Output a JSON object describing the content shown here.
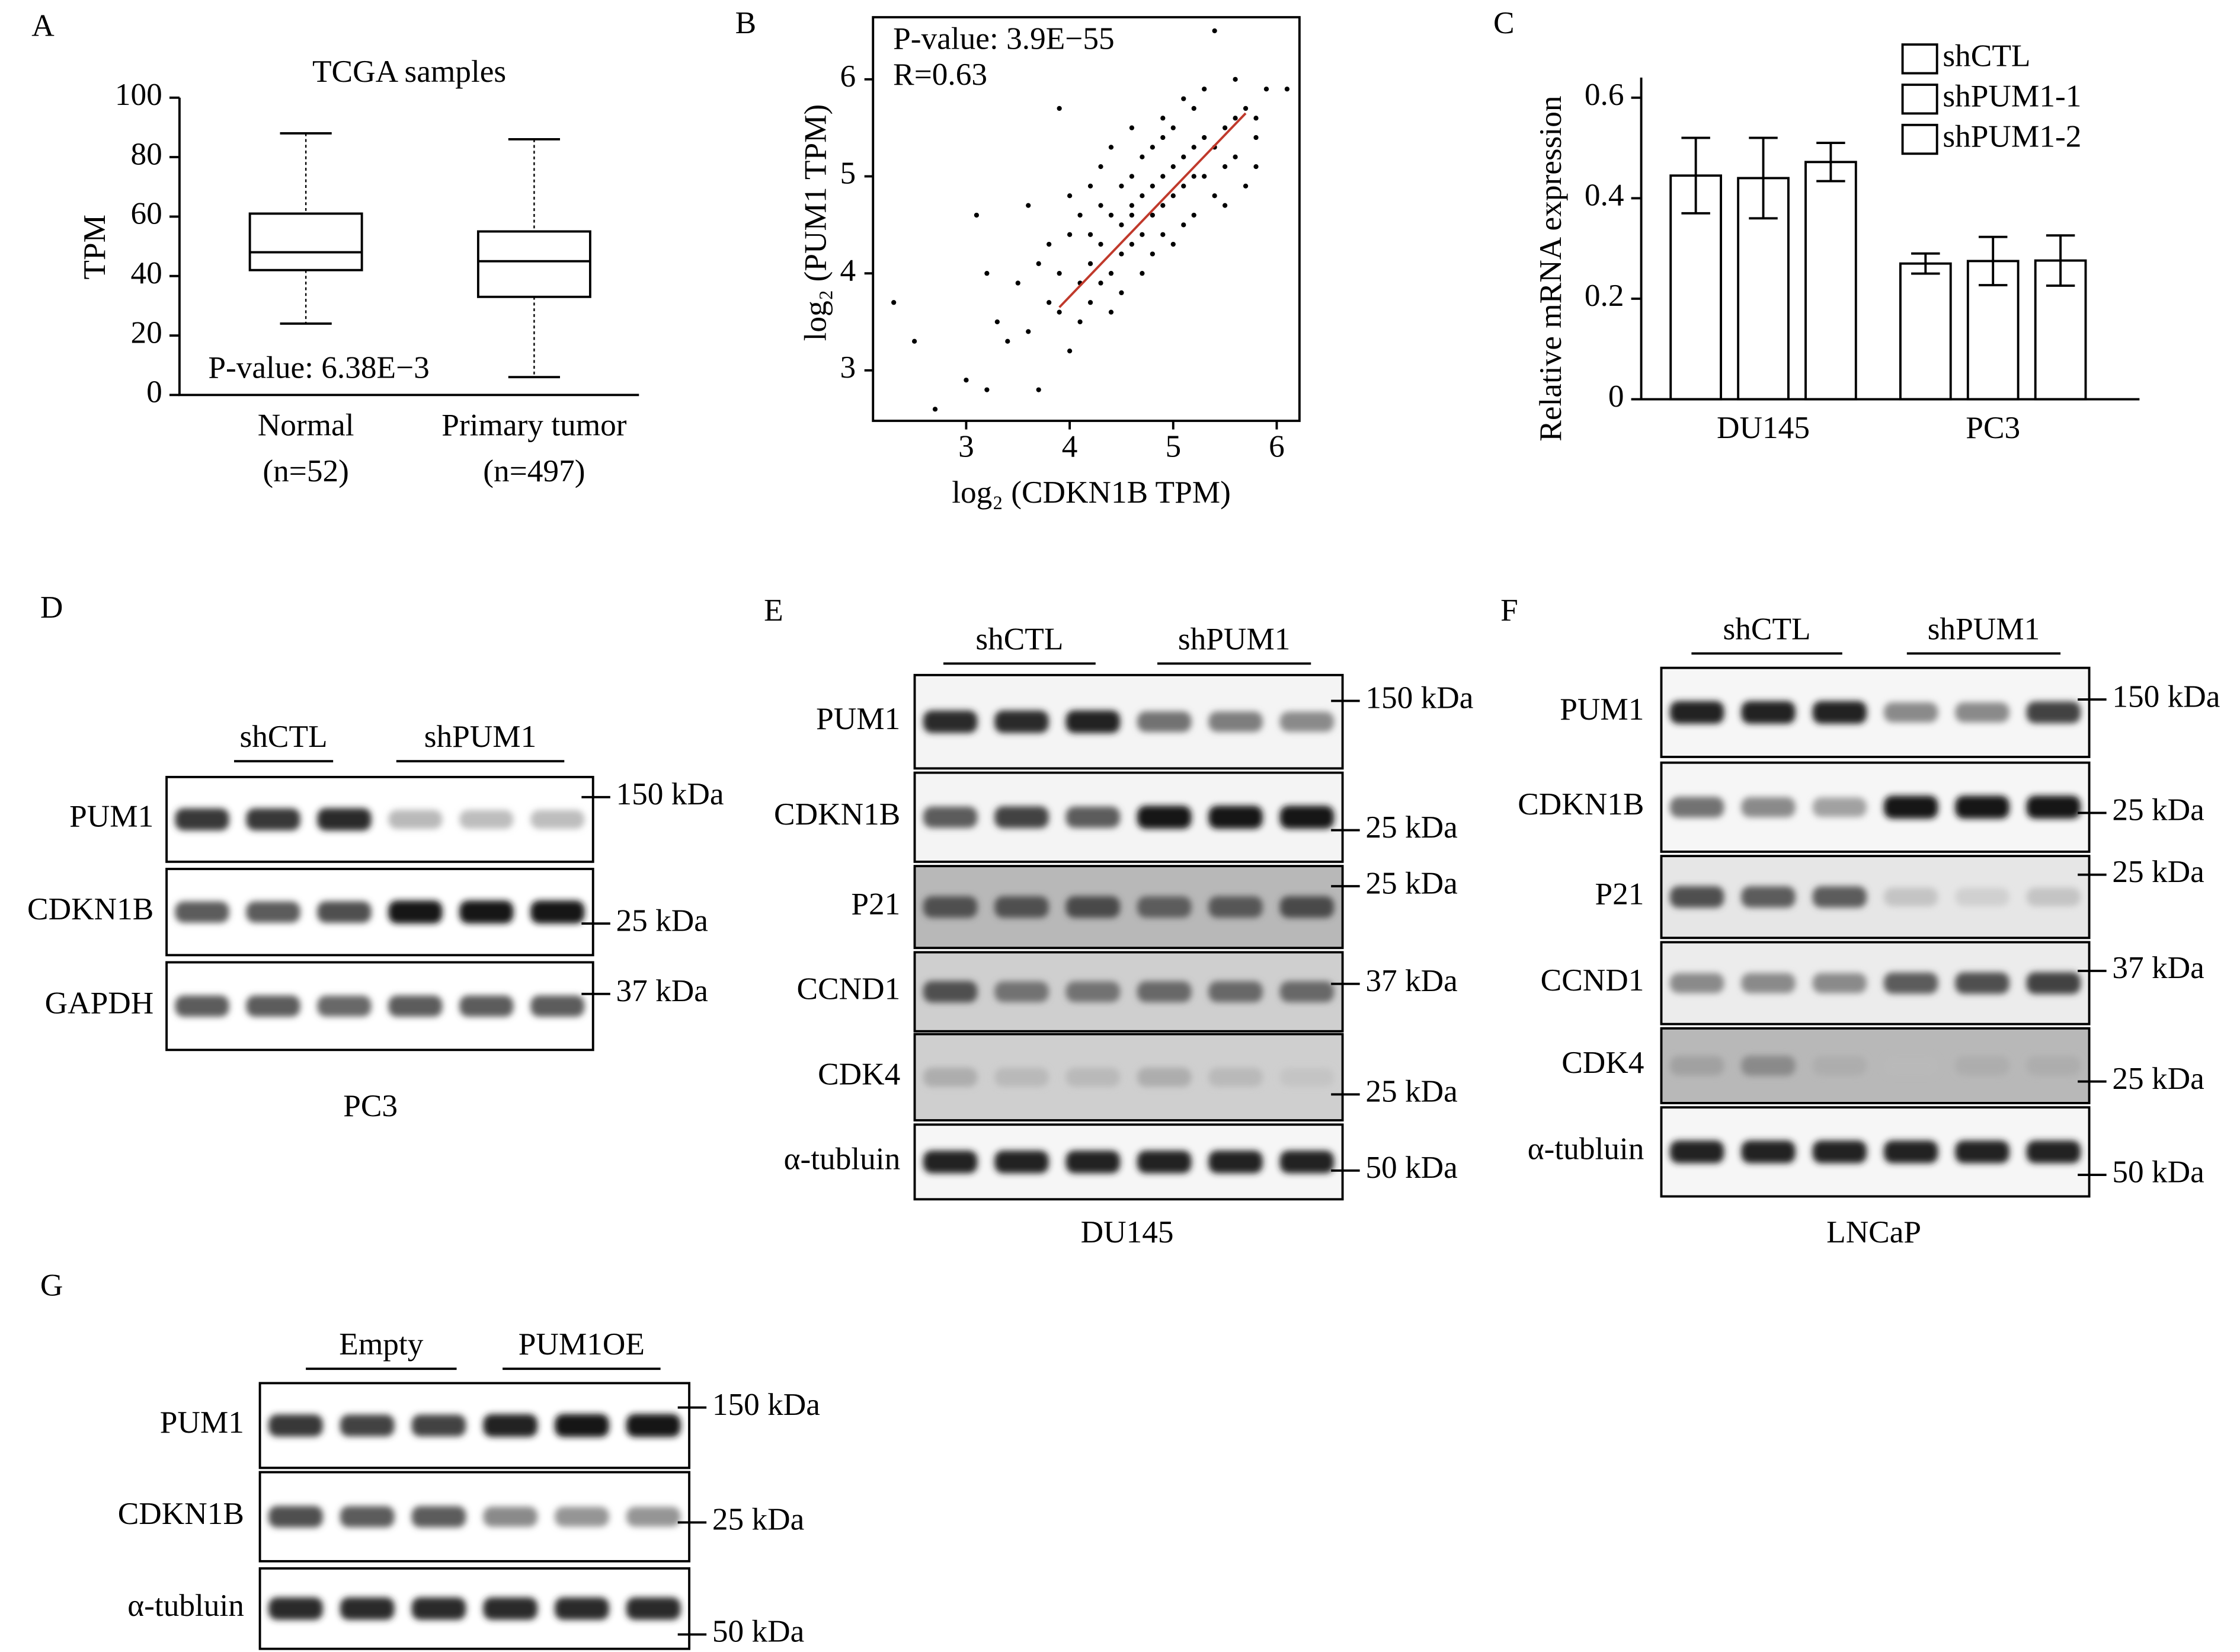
{
  "chart_data": [
    {
      "type": "box",
      "panel": "A",
      "title": "TCGA samples",
      "y_label": "TPM",
      "annotation": "P-value: 6.38E−3",
      "categories": [
        "Normal",
        "Primary tumor"
      ],
      "sample_sizes": [
        "(n=52)",
        "(n=497)"
      ],
      "boxes": [
        {
          "min": 24,
          "q1": 42,
          "median": 48,
          "q3": 61,
          "max": 88
        },
        {
          "min": 6,
          "q1": 33,
          "median": 45,
          "q3": 55,
          "max": 86
        }
      ],
      "ylim": [
        0,
        100
      ],
      "yticks": [
        0,
        20,
        40,
        60,
        80,
        100
      ]
    },
    {
      "type": "scatter",
      "panel": "B",
      "annotations": [
        "P-value: 3.9E−55",
        "R=0.63"
      ],
      "x_label": "log₂ (CDKN1B TPM)",
      "y_label": "log₂ (PUM1 TPM)",
      "color": "#000000",
      "x": [
        2.3,
        2.5,
        2.7,
        3.0,
        3.1,
        3.2,
        3.2,
        3.3,
        3.4,
        3.5,
        3.6,
        3.6,
        3.7,
        3.7,
        3.8,
        3.8,
        3.9,
        3.9,
        3.9,
        4.0,
        4.0,
        4.1,
        4.1,
        4.1,
        4.2,
        4.2,
        4.2,
        4.3,
        4.3,
        4.3,
        4.4,
        4.4,
        4.4,
        4.4,
        4.5,
        4.5,
        4.5,
        4.5,
        4.6,
        4.6,
        4.6,
        4.6,
        4.7,
        4.7,
        4.7,
        4.7,
        4.8,
        4.8,
        4.8,
        4.8,
        4.9,
        4.9,
        4.9,
        4.9,
        5.0,
        5.0,
        5.0,
        5.0,
        5.1,
        5.1,
        5.1,
        5.1,
        5.2,
        5.2,
        5.2,
        5.3,
        5.3,
        5.3,
        5.4,
        5.4,
        5.4,
        5.5,
        5.5,
        5.5,
        5.6,
        5.6,
        5.7,
        5.7,
        5.8,
        5.8,
        5.9,
        6.1,
        4.2,
        4.6,
        4.9,
        5.2,
        4.0,
        4.3,
        5.6,
        5.8
      ],
      "y": [
        3.7,
        3.3,
        2.6,
        2.9,
        4.6,
        4.0,
        2.8,
        3.5,
        3.3,
        3.9,
        4.7,
        3.4,
        2.8,
        4.1,
        3.7,
        4.3,
        5.7,
        3.6,
        4.0,
        4.4,
        3.2,
        3.9,
        4.6,
        3.5,
        4.1,
        4.9,
        3.7,
        4.3,
        3.9,
        5.1,
        4.6,
        4.0,
        5.3,
        3.6,
        4.5,
        4.9,
        4.2,
        3.8,
        4.7,
        5.0,
        4.3,
        5.5,
        4.8,
        4.4,
        5.2,
        4.0,
        4.9,
        5.3,
        4.6,
        4.2,
        5.0,
        4.7,
        5.6,
        4.4,
        5.1,
        4.8,
        5.5,
        4.3,
        5.2,
        4.9,
        5.8,
        4.5,
        5.3,
        5.0,
        4.6,
        5.4,
        5.0,
        5.9,
        5.3,
        6.5,
        4.8,
        5.5,
        5.1,
        4.7,
        5.6,
        5.2,
        5.7,
        4.9,
        5.4,
        5.1,
        5.9,
        5.9,
        4.4,
        4.6,
        5.4,
        5.7,
        4.8,
        4.7,
        6.0,
        5.6
      ],
      "fit": {
        "x": [
          3.9,
          5.7
        ],
        "y": [
          3.65,
          5.65
        ],
        "color": "#c0392b"
      },
      "xlim": [
        2.1,
        6.22
      ],
      "ylim": [
        2.48,
        6.64
      ],
      "xticks": [
        3,
        4,
        5,
        6
      ],
      "yticks": [
        3,
        4,
        5,
        6
      ]
    },
    {
      "type": "bar",
      "panel": "C",
      "y_label": "Relative mRNA expression",
      "categories": [
        "DU145",
        "PC3"
      ],
      "series": [
        {
          "name": "shCTL",
          "color": "#ffffff",
          "values": [
            0.445,
            0.27
          ],
          "errors": [
            0.075,
            0.02
          ]
        },
        {
          "name": "shPUM1-1",
          "color": "#000000",
          "values": [
            0.44,
            0.275
          ],
          "errors": [
            0.08,
            0.048
          ]
        },
        {
          "name": "shPUM1-2",
          "color": "#808080",
          "values": [
            0.472,
            0.276
          ],
          "errors": [
            0.038,
            0.05
          ]
        }
      ],
      "ylim": [
        0,
        0.64
      ],
      "yticks": [
        0,
        0.2,
        0.4,
        0.6
      ]
    }
  ],
  "blots": [
    {
      "panel": "D",
      "groups": [
        "shCTL",
        "shPUM1"
      ],
      "rows": [
        {
          "label": "PUM1",
          "marker": "150 kDa"
        },
        {
          "label": "CDKN1B",
          "marker": "25 kDa"
        },
        {
          "label": "GAPDH",
          "marker": "37 kDa"
        }
      ],
      "cell_line": "PC3"
    },
    {
      "panel": "E",
      "groups": [
        "shCTL",
        "shPUM1"
      ],
      "rows": [
        {
          "label": "PUM1",
          "marker": "150 kDa"
        },
        {
          "label": "CDKN1B",
          "marker": "25 kDa"
        },
        {
          "label": "P21",
          "marker": "25 kDa"
        },
        {
          "label": "CCND1",
          "marker": "37 kDa"
        },
        {
          "label": "CDK4",
          "marker": "25 kDa"
        },
        {
          "label": "α-tubluin",
          "marker": "50 kDa"
        }
      ],
      "cell_line": "DU145"
    },
    {
      "panel": "F",
      "groups": [
        "shCTL",
        "shPUM1"
      ],
      "rows": [
        {
          "label": "PUM1",
          "marker": "150 kDa"
        },
        {
          "label": "CDKN1B",
          "marker": "25 kDa"
        },
        {
          "label": "P21",
          "marker": "25 kDa"
        },
        {
          "label": "CCND1",
          "marker": "37 kDa"
        },
        {
          "label": "CDK4",
          "marker": "25 kDa"
        },
        {
          "label": "α-tubluin",
          "marker": "50 kDa"
        }
      ],
      "cell_line": "LNCaP"
    },
    {
      "panel": "G",
      "groups": [
        "Empty",
        "PUM1OE"
      ],
      "rows": [
        {
          "label": "PUM1",
          "marker": "150 kDa"
        },
        {
          "label": "CDKN1B",
          "marker": "25 kDa"
        },
        {
          "label": "α-tubluin",
          "marker": "50 kDa"
        }
      ]
    }
  ]
}
